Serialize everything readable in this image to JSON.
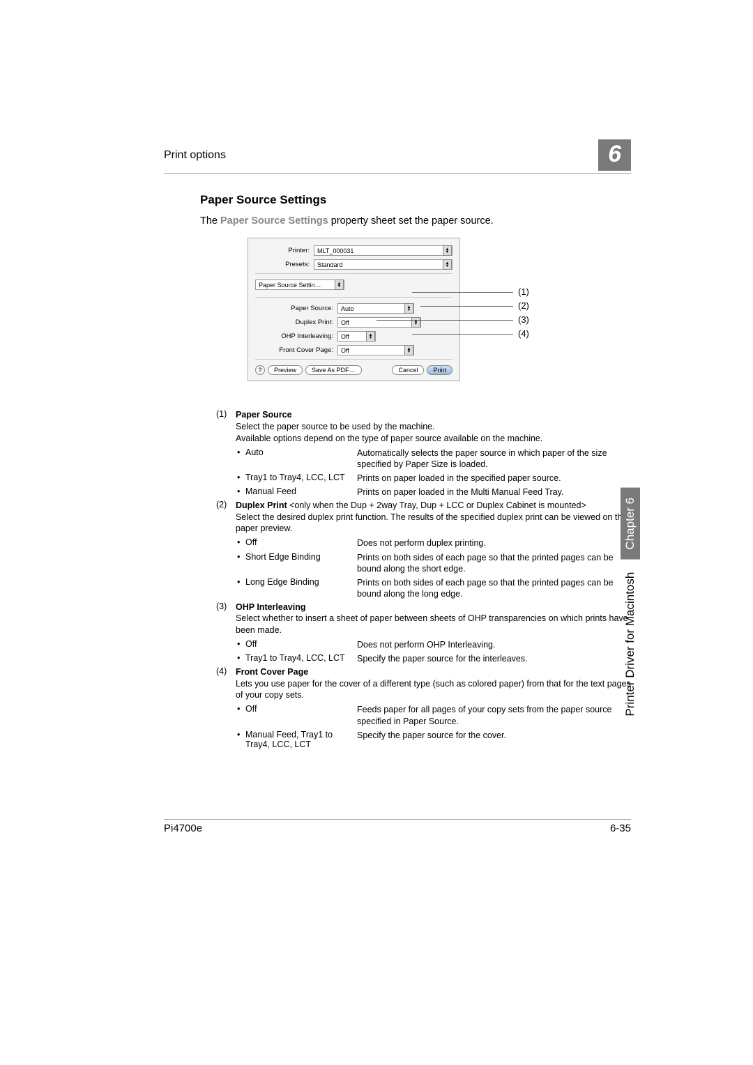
{
  "header": {
    "left": "Print options",
    "chapter_badge": "6"
  },
  "section_title": "Paper Source Settings",
  "intro": {
    "prefix": "The ",
    "bold": "Paper Source Settings",
    "suffix": " property sheet set the paper source."
  },
  "dialog": {
    "printer_label": "Printer:",
    "printer_value": "MLT_000031",
    "presets_label": "Presets:",
    "presets_value": "Standard",
    "tab_value": "Paper Source Settin…",
    "paper_source_label": "Paper Source:",
    "paper_source_value": "Auto",
    "duplex_label": "Duplex Print:",
    "duplex_value": "Off",
    "ohp_label": "OHP Interleaving:",
    "ohp_value": "Off",
    "front_cover_label": "Front Cover Page:",
    "front_cover_value": "Off",
    "help": "?",
    "preview": "Preview",
    "save_pdf": "Save As PDF…",
    "cancel": "Cancel",
    "print": "Print"
  },
  "callouts": {
    "c1": "(1)",
    "c2": "(2)",
    "c3": "(3)",
    "c4": "(4)"
  },
  "defs": [
    {
      "num": "(1)",
      "title": "Paper Source",
      "paras": [
        "Select the paper source to be used by the machine.",
        "Available options depend on the type of paper source available on the machine."
      ],
      "bullets": [
        {
          "term": "Auto",
          "desc": "Automatically selects the paper source in which paper of the size specified by Paper Size is loaded."
        },
        {
          "term": "Tray1 to Tray4, LCC, LCT",
          "desc": "Prints on paper loaded in the specified paper source."
        },
        {
          "term": "Manual Feed",
          "desc": "Prints on paper loaded in the Multi Manual Feed Tray."
        }
      ]
    },
    {
      "num": "(2)",
      "title": "Duplex Print",
      "title_suffix": " <only when the Dup + 2way Tray, Dup + LCC or Duplex Cabinet is mounted>",
      "paras": [
        "Select the desired duplex print function. The results of the specified duplex print can be viewed on the paper preview."
      ],
      "bullets": [
        {
          "term": "Off",
          "desc": "Does not perform duplex printing."
        },
        {
          "term": "Short Edge Binding",
          "desc": "Prints on both sides of each page so that the printed pages can be bound along the short edge."
        },
        {
          "term": "Long Edge Binding",
          "desc": "Prints on both sides of each page so that the printed pages can be bound along the long edge."
        }
      ]
    },
    {
      "num": "(3)",
      "title": "OHP Interleaving",
      "paras": [
        "Select whether to insert a sheet of paper between sheets of OHP transparencies on which prints have been made."
      ],
      "bullets": [
        {
          "term": "Off",
          "desc": "Does not perform OHP Interleaving."
        },
        {
          "term": "Tray1 to Tray4, LCC, LCT",
          "desc": "Specify the paper source for the interleaves."
        }
      ]
    },
    {
      "num": "(4)",
      "title": "Front Cover Page",
      "paras": [
        "Lets you use paper for the cover of a different type (such as colored paper) from that for the text pages of your copy sets."
      ],
      "bullets": [
        {
          "term": "Off",
          "desc": "Feeds paper for all pages of your copy sets from the paper source specified in Paper Source."
        },
        {
          "term": "Manual Feed, Tray1 to Tray4, LCC, LCT",
          "desc": "Specify the paper source for the cover."
        }
      ]
    }
  ],
  "side": {
    "lower": "Printer Driver for Macintosh",
    "chapter": "Chapter 6"
  },
  "footer": {
    "left": "Pi4700e",
    "right": "6-35"
  }
}
